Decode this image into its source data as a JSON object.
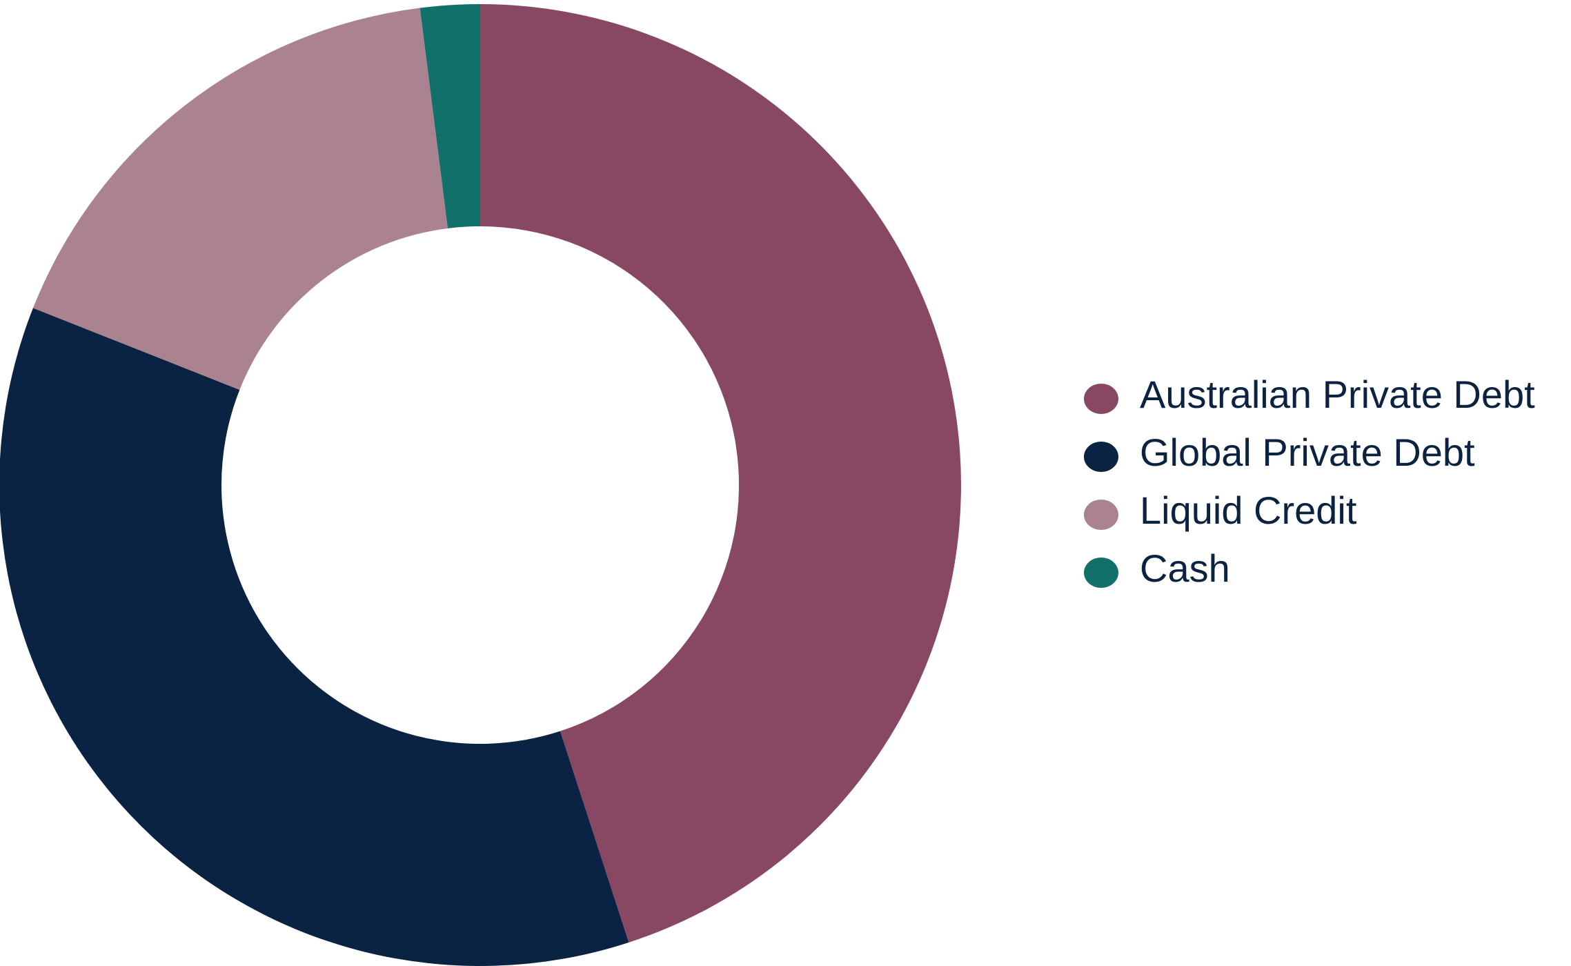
{
  "chart_data": {
    "type": "donut",
    "categories": [
      "Australian Private Debt",
      "Global Private Debt",
      "Liquid Credit",
      "Cash"
    ],
    "values": [
      45,
      36,
      17,
      2
    ],
    "colors": [
      "#884864",
      "#0a2342",
      "#ab828f",
      "#12706b"
    ]
  }
}
